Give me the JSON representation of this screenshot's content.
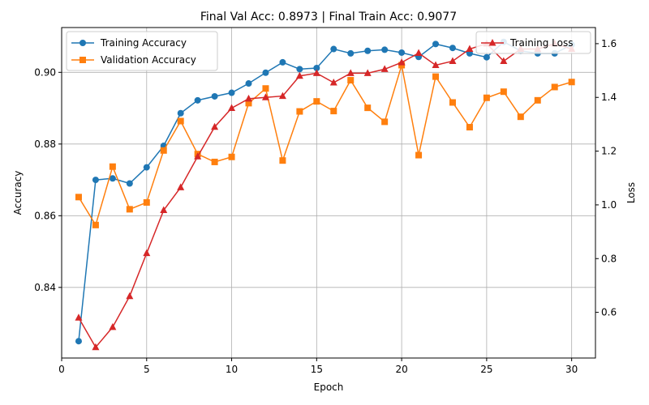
{
  "chart_data": {
    "type": "line",
    "title": "Final Val Acc: 0.8973 | Final Train Acc: 0.9077",
    "xlabel": "Epoch",
    "ylabel": "Accuracy",
    "y2label": "Loss",
    "xlim": [
      0,
      31.4
    ],
    "ylim": [
      0.8203,
      0.9125
    ],
    "y2lim": [
      0.43,
      1.66
    ],
    "xticks": [
      0,
      5,
      10,
      15,
      20,
      25,
      30
    ],
    "yticks": [
      0.84,
      0.86,
      0.88,
      0.9
    ],
    "y2ticks": [
      0.6,
      0.8,
      1.0,
      1.2,
      1.4,
      1.6
    ],
    "grid": true,
    "legend_left": "upper-left",
    "legend_right": "upper-right",
    "x": [
      1,
      2,
      3,
      4,
      5,
      6,
      7,
      8,
      9,
      10,
      11,
      12,
      13,
      14,
      15,
      16,
      17,
      18,
      19,
      20,
      21,
      22,
      23,
      24,
      25,
      26,
      27,
      28,
      29,
      30
    ],
    "series": [
      {
        "name": "Training Accuracy",
        "axis": "left",
        "color": "#1f77b4",
        "marker": "circle",
        "values": [
          0.825,
          0.87,
          0.8704,
          0.869,
          0.8735,
          0.8795,
          0.8886,
          0.8922,
          0.8933,
          0.8943,
          0.8969,
          0.8999,
          0.9028,
          0.9009,
          0.9012,
          0.9065,
          0.9053,
          0.906,
          0.9063,
          0.9055,
          0.9043,
          0.9079,
          0.9068,
          0.9053,
          0.9042,
          0.9085,
          0.906,
          0.9053,
          0.9053,
          0.9077
        ]
      },
      {
        "name": "Validation Accuracy",
        "axis": "left",
        "color": "#ff7f0e",
        "marker": "square",
        "values": [
          0.8652,
          0.8574,
          0.8737,
          0.8618,
          0.8637,
          0.8782,
          0.8864,
          0.8772,
          0.875,
          0.8764,
          0.8914,
          0.8955,
          0.8754,
          0.8891,
          0.8919,
          0.8892,
          0.8978,
          0.8901,
          0.8862,
          0.902,
          0.8769,
          0.8988,
          0.8916,
          0.8847,
          0.8929,
          0.8946,
          0.8876,
          0.8922,
          0.8959,
          0.8973
        ]
      },
      {
        "name": "Training Loss",
        "axis": "right",
        "color": "#d62728",
        "marker": "triangle",
        "values": [
          0.58,
          0.47,
          0.545,
          0.66,
          0.82,
          0.98,
          1.065,
          1.18,
          1.29,
          1.36,
          1.395,
          1.4,
          1.405,
          1.48,
          1.49,
          1.455,
          1.49,
          1.49,
          1.505,
          1.53,
          1.565,
          1.52,
          1.535,
          1.58,
          1.6,
          1.535,
          1.58,
          1.58,
          1.6,
          1.58
        ]
      }
    ]
  }
}
